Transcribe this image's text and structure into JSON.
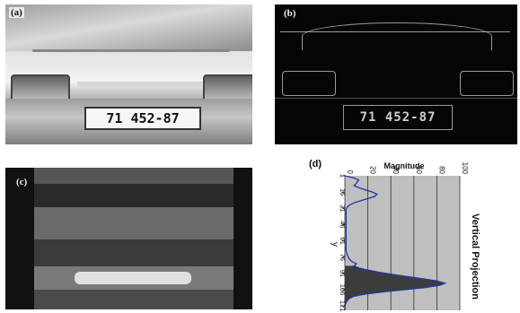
{
  "panels": {
    "a": {
      "label": "(a)",
      "plate_text": "71 452-87"
    },
    "b": {
      "label": "(b)",
      "plate_text": "71 452-87"
    },
    "c": {
      "label": "(c)"
    },
    "d": {
      "label": "(d)"
    }
  },
  "chart_data": {
    "type": "line",
    "orientation": "rotated",
    "title": "Magnitude",
    "ylabel": "Vertical Projection",
    "axis_symbol": "y",
    "magnitude_ticks": [
      "0",
      "20",
      "40",
      "60",
      "80",
      "100"
    ],
    "magnitude_range": [
      0,
      100
    ],
    "row_ticks": [
      "1",
      "16",
      "31",
      "46",
      "61",
      "76",
      "91",
      "106",
      "121"
    ],
    "row_range": [
      1,
      125
    ],
    "fill": "#3c3c3c",
    "line_color": "#2233aa",
    "background": "#bfbfbf",
    "series": [
      {
        "x": [
          1,
          3,
          5,
          8,
          10,
          12,
          14,
          16,
          18,
          20,
          22,
          24,
          26,
          28,
          30,
          32,
          36,
          40,
          46,
          52,
          58,
          64,
          70,
          74,
          78,
          80,
          82,
          84,
          86,
          88,
          90,
          92,
          94,
          96,
          98,
          100,
          102,
          104,
          106,
          108,
          110,
          112,
          114,
          116,
          118,
          121,
          125
        ],
        "y": [
          0,
          8,
          12,
          10,
          8,
          12,
          18,
          24,
          28,
          26,
          20,
          14,
          8,
          4,
          2,
          1,
          1,
          1,
          1,
          1,
          1,
          1,
          1,
          2,
          4,
          6,
          10,
          8,
          12,
          20,
          30,
          42,
          55,
          68,
          80,
          87,
          82,
          70,
          52,
          34,
          18,
          8,
          4,
          2,
          1,
          0,
          0
        ]
      }
    ]
  }
}
